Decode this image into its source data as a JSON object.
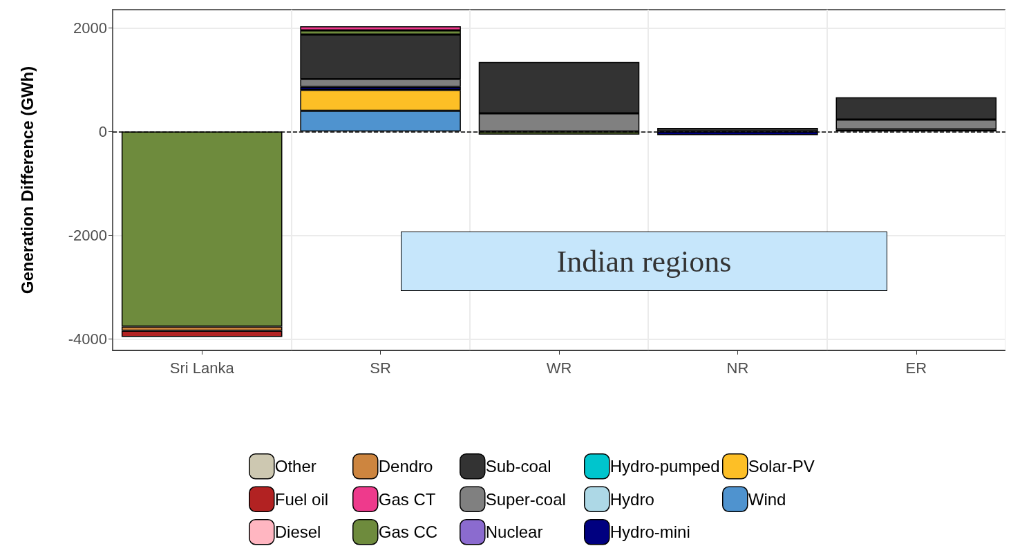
{
  "chart_data": {
    "type": "bar",
    "stacked": true,
    "ylabel": "Generation Difference (GWh)",
    "categories": [
      "Sri Lanka",
      "SR",
      "WR",
      "NR",
      "ER"
    ],
    "ylim": [
      -4220,
      2350
    ],
    "yticks": [
      -4000,
      -2000,
      0,
      2000
    ],
    "grid": true,
    "legend": "bottom",
    "ref_lines": [
      {
        "axis": "y",
        "value": 0,
        "color": "#000000",
        "line_style": "dashed"
      }
    ],
    "annotations": [
      "Indian regions"
    ],
    "series": [
      {
        "name": "Wind",
        "color": "#4f93cf",
        "values": [
          null,
          400,
          null,
          null,
          null
        ]
      },
      {
        "name": "Solar-PV",
        "color": "#fdbf26",
        "values": [
          null,
          400,
          null,
          null,
          null
        ]
      },
      {
        "name": "Hydro-mini",
        "color": "#000080",
        "values": [
          null,
          60,
          null,
          -70,
          40
        ]
      },
      {
        "name": "Hydro",
        "color": "#add8e6",
        "values": [
          null,
          null,
          null,
          null,
          null
        ]
      },
      {
        "name": "Hydro-pumped",
        "color": "#00c5cd",
        "values": [
          null,
          null,
          null,
          null,
          null
        ]
      },
      {
        "name": "Nuclear",
        "color": "#8b6bcf",
        "values": [
          null,
          null,
          null,
          null,
          null
        ]
      },
      {
        "name": "Super-coal",
        "color": "#808080",
        "values": [
          null,
          150,
          350,
          null,
          190
        ]
      },
      {
        "name": "Sub-coal",
        "color": "#333333",
        "values": [
          null,
          860,
          990,
          70,
          430
        ]
      },
      {
        "name": "Gas CC",
        "color": "#6e8b3d",
        "values": [
          -3760,
          80,
          -60,
          null,
          null
        ]
      },
      {
        "name": "Gas CT",
        "color": "#ee3a8c",
        "values": [
          null,
          80,
          null,
          null,
          null
        ]
      },
      {
        "name": "Dendro",
        "color": "#cd853f",
        "values": [
          -80,
          null,
          null,
          null,
          null
        ]
      },
      {
        "name": "Diesel",
        "color": "#ffb6c1",
        "values": [
          null,
          null,
          null,
          null,
          null
        ]
      },
      {
        "name": "Fuel oil",
        "color": "#b22222",
        "values": [
          -120,
          null,
          null,
          null,
          null
        ]
      },
      {
        "name": "Other",
        "color": "#cdc8b1",
        "values": [
          null,
          null,
          null,
          null,
          null
        ]
      }
    ]
  }
}
